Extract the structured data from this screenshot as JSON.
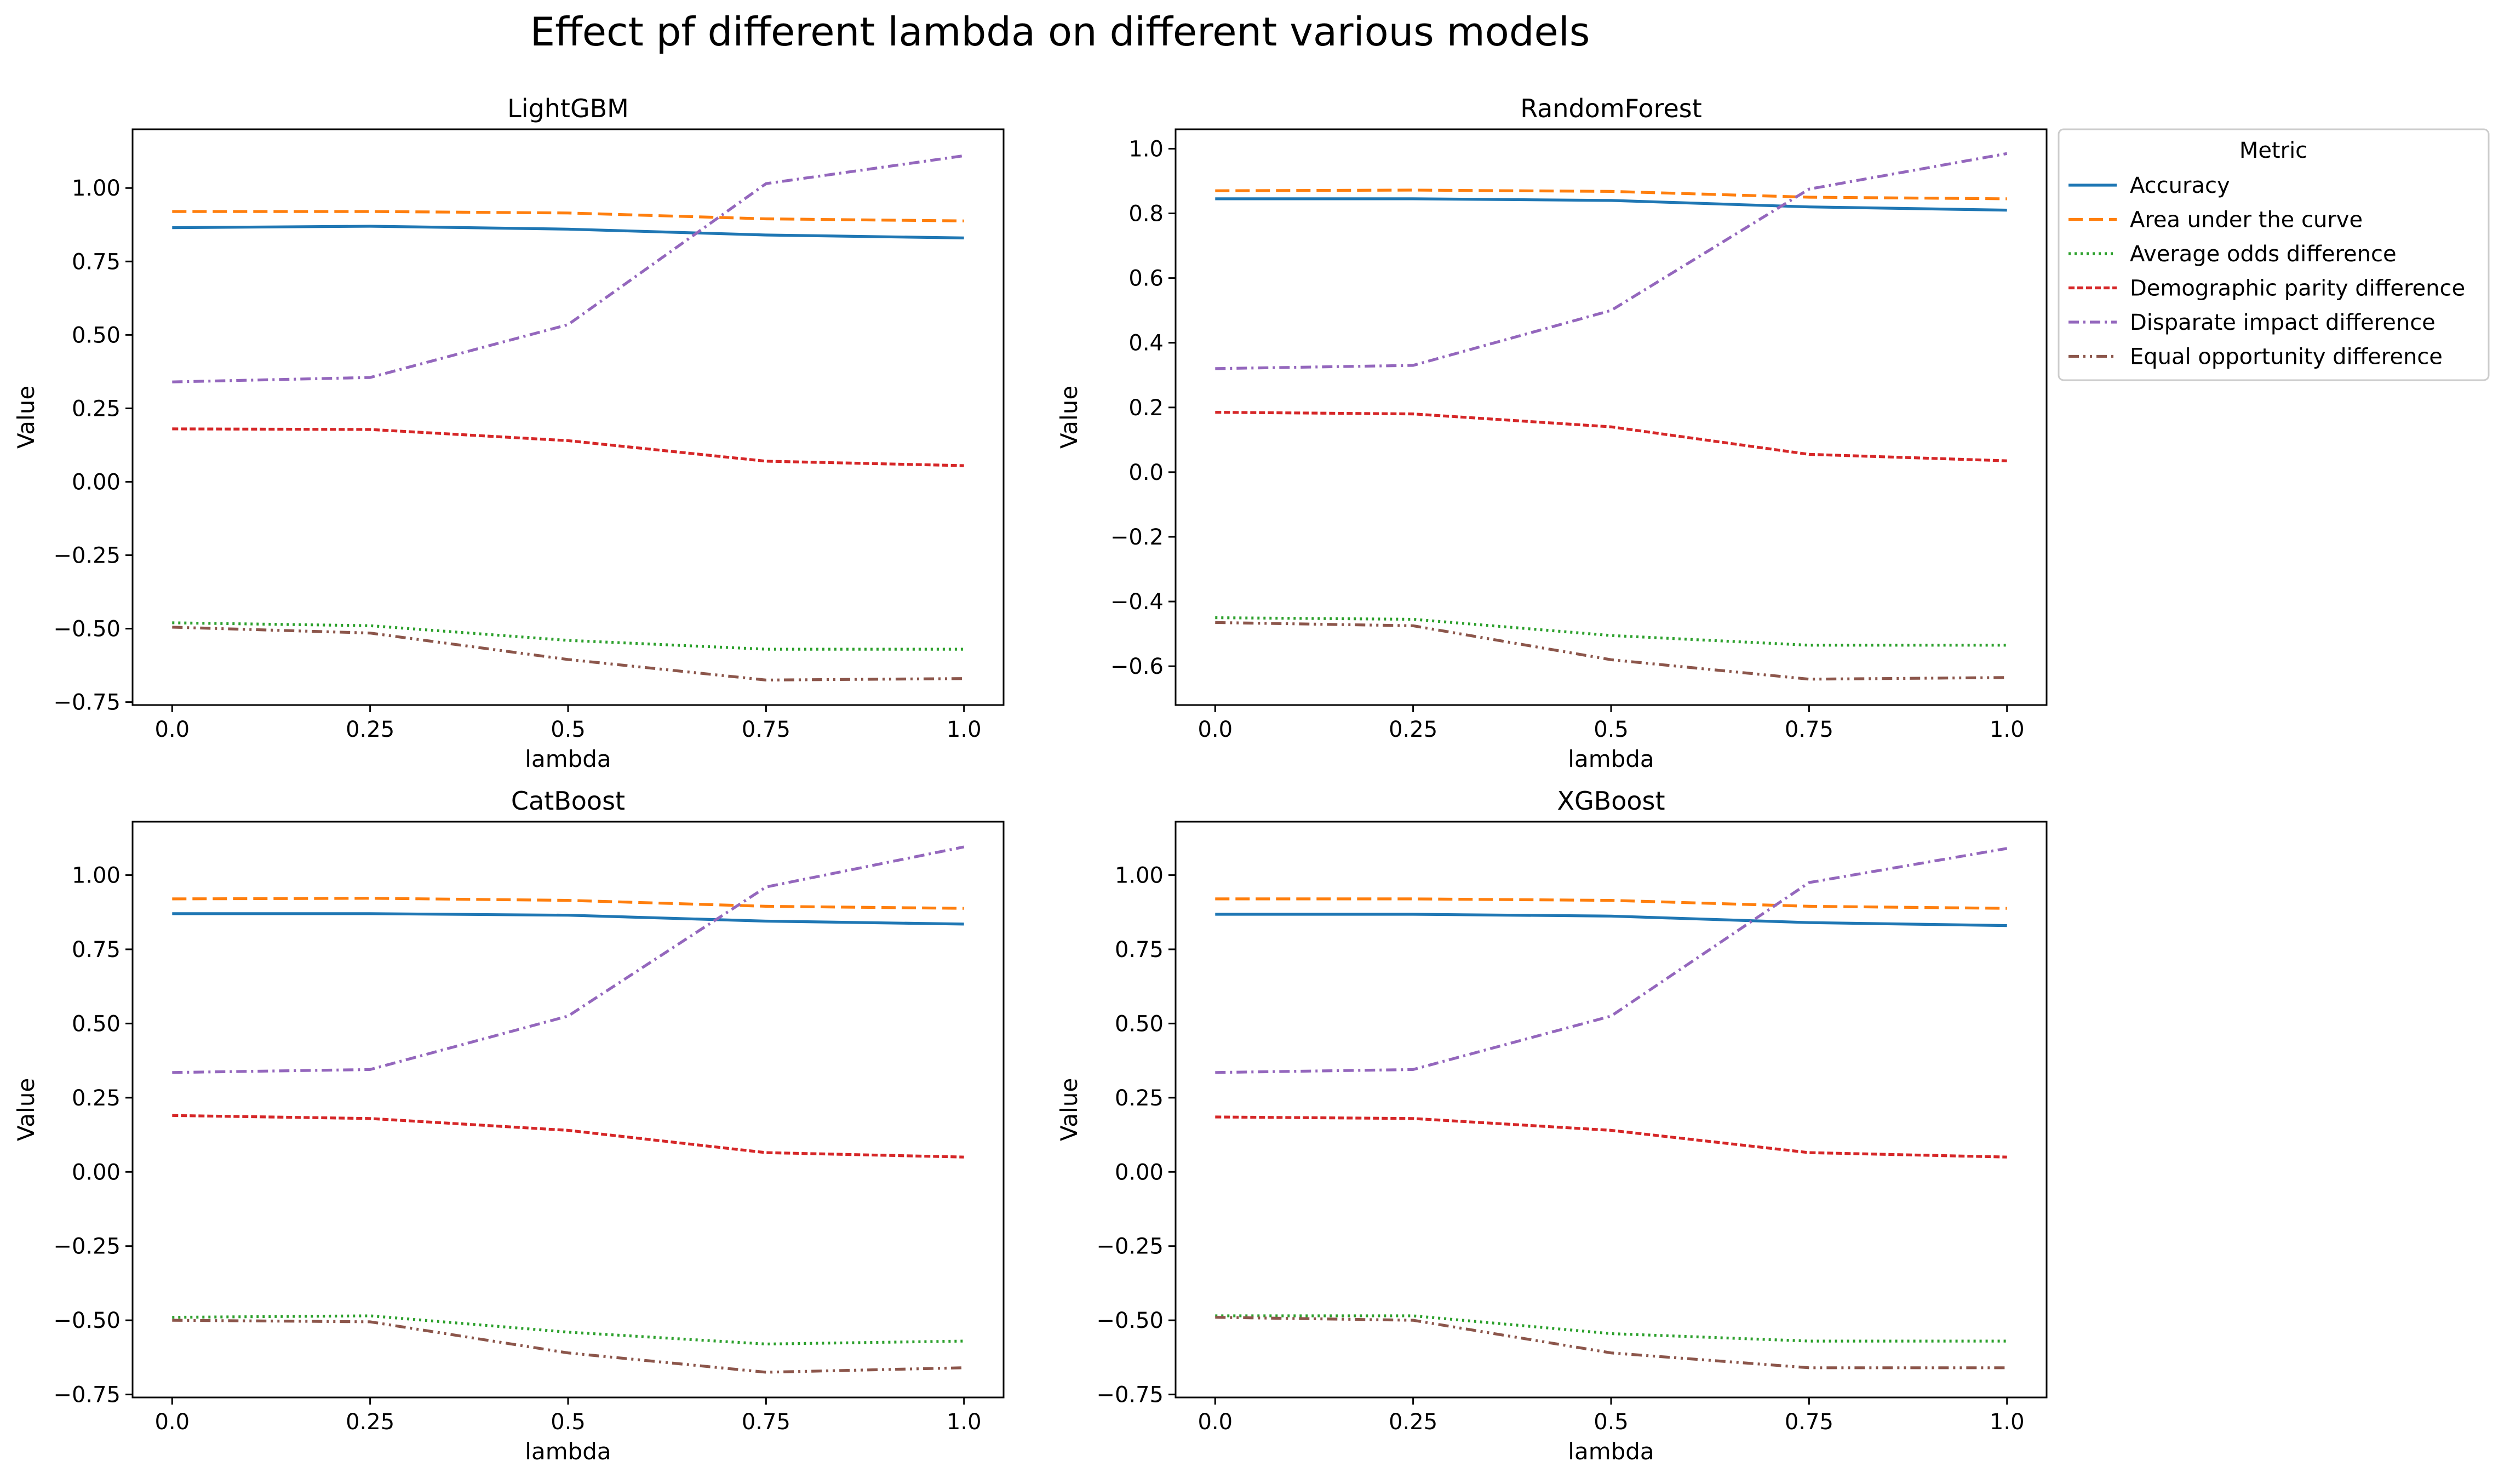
{
  "figure": {
    "title": "Effect pf different lambda on different various models"
  },
  "legend": {
    "title": "Metric",
    "placement": "outside-right"
  },
  "chart_data": [
    {
      "type": "line",
      "title": "LightGBM",
      "xlabel": "lambda",
      "ylabel": "Value",
      "x": [
        0,
        0.25,
        0.5,
        0.75,
        1.0
      ],
      "xticks": [
        "0.0",
        "0.25",
        "0.5",
        "0.75",
        "1.0"
      ],
      "yticks": [
        "−0.75",
        "−0.50",
        "−0.25",
        "0.00",
        "0.25",
        "0.50",
        "0.75",
        "1.00"
      ],
      "xlim": [
        -0.05,
        1.05
      ],
      "ylim": [
        -0.76,
        1.2
      ],
      "grid": false,
      "series": [
        {
          "name": "Accuracy",
          "values": [
            0.865,
            0.87,
            0.86,
            0.84,
            0.83
          ]
        },
        {
          "name": "Area under the curve",
          "values": [
            0.92,
            0.92,
            0.915,
            0.895,
            0.888
          ]
        },
        {
          "name": "Average odds difference",
          "values": [
            -0.48,
            -0.49,
            -0.54,
            -0.57,
            -0.57
          ]
        },
        {
          "name": "Demographic parity difference",
          "values": [
            0.18,
            0.178,
            0.14,
            0.07,
            0.055
          ]
        },
        {
          "name": "Disparate impact difference",
          "values": [
            0.34,
            0.355,
            0.535,
            1.015,
            1.11
          ]
        },
        {
          "name": "Equal opportunity difference",
          "values": [
            -0.495,
            -0.515,
            -0.605,
            -0.675,
            -0.67
          ]
        }
      ]
    },
    {
      "type": "line",
      "title": "RandomForest",
      "xlabel": "lambda",
      "ylabel": "Value",
      "x": [
        0,
        0.25,
        0.5,
        0.75,
        1.0
      ],
      "xticks": [
        "0.0",
        "0.25",
        "0.5",
        "0.75",
        "1.0"
      ],
      "yticks": [
        "−0.6",
        "−0.4",
        "−0.2",
        "0.0",
        "0.2",
        "0.4",
        "0.6",
        "0.8",
        "1.0"
      ],
      "xlim": [
        -0.05,
        1.05
      ],
      "ylim": [
        -0.72,
        1.06
      ],
      "grid": false,
      "series": [
        {
          "name": "Accuracy",
          "values": [
            0.845,
            0.845,
            0.84,
            0.82,
            0.81
          ]
        },
        {
          "name": "Area under the curve",
          "values": [
            0.87,
            0.872,
            0.868,
            0.85,
            0.845
          ]
        },
        {
          "name": "Average odds difference",
          "values": [
            -0.45,
            -0.455,
            -0.505,
            -0.535,
            -0.535
          ]
        },
        {
          "name": "Demographic parity difference",
          "values": [
            0.185,
            0.18,
            0.14,
            0.055,
            0.035
          ]
        },
        {
          "name": "Disparate impact difference",
          "values": [
            0.32,
            0.33,
            0.5,
            0.875,
            0.985
          ]
        },
        {
          "name": "Equal opportunity difference",
          "values": [
            -0.465,
            -0.475,
            -0.58,
            -0.64,
            -0.635
          ]
        }
      ]
    },
    {
      "type": "line",
      "title": "CatBoost",
      "xlabel": "lambda",
      "ylabel": "Value",
      "x": [
        0,
        0.25,
        0.5,
        0.75,
        1.0
      ],
      "xticks": [
        "0.0",
        "0.25",
        "0.5",
        "0.75",
        "1.0"
      ],
      "yticks": [
        "−0.75",
        "−0.50",
        "−0.25",
        "0.00",
        "0.25",
        "0.50",
        "0.75",
        "1.00"
      ],
      "xlim": [
        -0.05,
        1.05
      ],
      "ylim": [
        -0.76,
        1.18
      ],
      "grid": false,
      "series": [
        {
          "name": "Accuracy",
          "values": [
            0.87,
            0.87,
            0.865,
            0.845,
            0.835
          ]
        },
        {
          "name": "Area under the curve",
          "values": [
            0.92,
            0.922,
            0.915,
            0.895,
            0.888
          ]
        },
        {
          "name": "Average odds difference",
          "values": [
            -0.49,
            -0.485,
            -0.54,
            -0.58,
            -0.57
          ]
        },
        {
          "name": "Demographic parity difference",
          "values": [
            0.19,
            0.18,
            0.14,
            0.065,
            0.05
          ]
        },
        {
          "name": "Disparate impact difference",
          "values": [
            0.335,
            0.345,
            0.525,
            0.96,
            1.095
          ]
        },
        {
          "name": "Equal opportunity difference",
          "values": [
            -0.5,
            -0.505,
            -0.61,
            -0.675,
            -0.66
          ]
        }
      ]
    },
    {
      "type": "line",
      "title": "XGBoost",
      "xlabel": "lambda",
      "ylabel": "Value",
      "x": [
        0,
        0.25,
        0.5,
        0.75,
        1.0
      ],
      "xticks": [
        "0.0",
        "0.25",
        "0.5",
        "0.75",
        "1.0"
      ],
      "yticks": [
        "−0.75",
        "−0.50",
        "−0.25",
        "0.00",
        "0.25",
        "0.50",
        "0.75",
        "1.00"
      ],
      "xlim": [
        -0.05,
        1.05
      ],
      "ylim": [
        -0.76,
        1.18
      ],
      "grid": false,
      "series": [
        {
          "name": "Accuracy",
          "values": [
            0.868,
            0.868,
            0.862,
            0.84,
            0.83
          ]
        },
        {
          "name": "Area under the curve",
          "values": [
            0.92,
            0.92,
            0.915,
            0.895,
            0.888
          ]
        },
        {
          "name": "Average odds difference",
          "values": [
            -0.485,
            -0.485,
            -0.545,
            -0.57,
            -0.57
          ]
        },
        {
          "name": "Demographic parity difference",
          "values": [
            0.185,
            0.18,
            0.14,
            0.065,
            0.05
          ]
        },
        {
          "name": "Disparate impact difference",
          "values": [
            0.335,
            0.345,
            0.525,
            0.975,
            1.09
          ]
        },
        {
          "name": "Equal opportunity difference",
          "values": [
            -0.49,
            -0.5,
            -0.61,
            -0.66,
            -0.66
          ]
        }
      ]
    }
  ],
  "series_styles": [
    {
      "color": "#1f77b4",
      "dash": ""
    },
    {
      "color": "#ff7f0e",
      "dash": "26,11"
    },
    {
      "color": "#2ca02c",
      "dash": "4,7"
    },
    {
      "color": "#d62728",
      "dash": "11,5"
    },
    {
      "color": "#9467bd",
      "dash": "19,8,4,8"
    },
    {
      "color": "#8c564b",
      "dash": "19,8,4,8,4,8"
    }
  ]
}
